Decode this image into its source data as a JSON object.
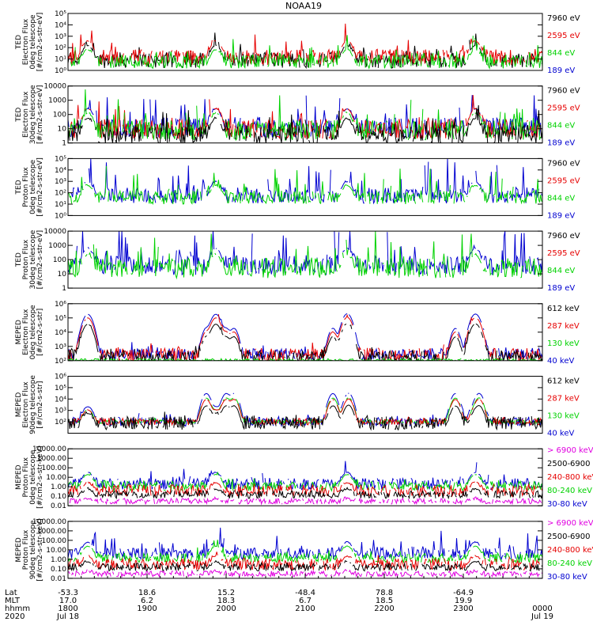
{
  "chart_data": {
    "type": "line",
    "title": "NOAA19",
    "x_range_hours": [
      18.0,
      24.0
    ],
    "panels": [
      {
        "id": "ted-e-0",
        "ylabel": [
          "TED",
          "Electron Flux",
          "0deg telescope",
          "[#/cm2-s-str-eV]"
        ],
        "ylim": [
          1,
          100000
        ],
        "scale": "log",
        "yticks": [
          {
            "v": 1,
            "label": "10⁰"
          },
          {
            "v": 10,
            "label": "10¹"
          },
          {
            "v": 100,
            "label": "10²"
          },
          {
            "v": 1000,
            "label": "10³"
          },
          {
            "v": 10000,
            "label": "10⁴"
          },
          {
            "v": 100000,
            "label": "10⁵"
          }
        ],
        "legend": [
          {
            "label": "7960 eV",
            "color": "#000000"
          },
          {
            "label": "2595 eV",
            "color": "#e60000"
          },
          {
            "label": "844 eV",
            "color": "#00d200"
          },
          {
            "label": "189 eV",
            "color": "#0000d0"
          }
        ],
        "series": [
          {
            "name": "7960 eV",
            "color": "#000000",
            "base": 8,
            "noise": 0.35,
            "pass_amp": 18,
            "aur_amp": 0.6,
            "trap_amp": 0
          },
          {
            "name": "2595 eV",
            "color": "#e60000",
            "base": 15,
            "noise": 0.35,
            "pass_amp": 25,
            "aur_amp": 0.8,
            "trap_amp": 0
          },
          {
            "name": "844 eV",
            "color": "#00d200",
            "base": 6,
            "noise": 0.3,
            "pass_amp": 10,
            "aur_amp": 0.7,
            "trap_amp": 0
          }
        ]
      },
      {
        "id": "ted-e-30",
        "ylabel": [
          "TED",
          "Electron Flux",
          "30deg telescope",
          "[#/cm2-s-str-eV]"
        ],
        "ylim": [
          1,
          10000
        ],
        "scale": "log",
        "yticks": [
          {
            "v": 1,
            "label": "1"
          },
          {
            "v": 10,
            "label": "10"
          },
          {
            "v": 100,
            "label": "100"
          },
          {
            "v": 1000,
            "label": "1000"
          },
          {
            "v": 10000,
            "label": "10000"
          }
        ],
        "legend": [
          {
            "label": "7960 eV",
            "color": "#000000"
          },
          {
            "label": "2595 eV",
            "color": "#e60000"
          },
          {
            "label": "844 eV",
            "color": "#00d200"
          },
          {
            "label": "189 eV",
            "color": "#0000d0"
          }
        ],
        "series": [
          {
            "name": "189 eV",
            "color": "#0000d0",
            "base": 12,
            "noise": 0.35,
            "pass_amp": 20,
            "aur_amp": 0.9,
            "trap_amp": 0
          },
          {
            "name": "2595 eV",
            "color": "#e60000",
            "base": 10,
            "noise": 0.35,
            "pass_amp": 25,
            "aur_amp": 0.8,
            "trap_amp": 0
          },
          {
            "name": "844 eV",
            "color": "#00d200",
            "base": 8,
            "noise": 0.35,
            "pass_amp": 15,
            "aur_amp": 0.9,
            "trap_amp": 0
          },
          {
            "name": "7960 eV",
            "color": "#000000",
            "base": 4,
            "noise": 0.35,
            "pass_amp": 12,
            "aur_amp": 0.6,
            "trap_amp": 0
          }
        ]
      },
      {
        "id": "ted-p-0",
        "ylabel": [
          "TED",
          "Proton Flux",
          "0deg telescope",
          "[#/cm2-s-str-eV]"
        ],
        "ylim": [
          1,
          100000
        ],
        "scale": "log",
        "yticks": [
          {
            "v": 1,
            "label": "10⁰"
          },
          {
            "v": 10,
            "label": "10¹"
          },
          {
            "v": 100,
            "label": "10²"
          },
          {
            "v": 1000,
            "label": "10³"
          },
          {
            "v": 10000,
            "label": "10⁴"
          },
          {
            "v": 100000,
            "label": "10⁵"
          }
        ],
        "legend": [
          {
            "label": "7960 eV",
            "color": "#000000"
          },
          {
            "label": "2595 eV",
            "color": "#e60000"
          },
          {
            "label": "844 eV",
            "color": "#00d200"
          },
          {
            "label": "189 eV",
            "color": "#0000d0"
          }
        ],
        "series": [
          {
            "name": "189 eV",
            "color": "#0000d0",
            "base": 60,
            "noise": 0.35,
            "pass_amp": 15,
            "aur_amp": 1.5,
            "trap_amp": 0
          },
          {
            "name": "844 eV",
            "color": "#00d200",
            "base": 40,
            "noise": 0.3,
            "pass_amp": 10,
            "aur_amp": 1.1,
            "trap_amp": 0
          }
        ]
      },
      {
        "id": "ted-p-30",
        "ylabel": [
          "TED",
          "Proton Flux",
          "30deg telescope",
          "[#/cm2-s-str-eV]"
        ],
        "ylim": [
          1,
          10000
        ],
        "scale": "log",
        "yticks": [
          {
            "v": 1,
            "label": "1"
          },
          {
            "v": 10,
            "label": "10"
          },
          {
            "v": 100,
            "label": "100"
          },
          {
            "v": 1000,
            "label": "1000"
          },
          {
            "v": 10000,
            "label": "10000"
          }
        ],
        "legend": [
          {
            "label": "7960 eV",
            "color": "#000000"
          },
          {
            "label": "2595 eV",
            "color": "#e60000"
          },
          {
            "label": "844 eV",
            "color": "#00d200"
          },
          {
            "label": "189 eV",
            "color": "#0000d0"
          }
        ],
        "series": [
          {
            "name": "189 eV",
            "color": "#0000d0",
            "base": 40,
            "noise": 0.35,
            "pass_amp": 15,
            "aur_amp": 1.4,
            "trap_amp": 0
          },
          {
            "name": "844 eV",
            "color": "#00d200",
            "base": 25,
            "noise": 0.35,
            "pass_amp": 8,
            "aur_amp": 1.1,
            "trap_amp": 0
          }
        ]
      },
      {
        "id": "meped-e-0",
        "ylabel": [
          "MEPED",
          "Electron Flux",
          "0deg telescope",
          "[#/cm2-s-str]"
        ],
        "ylim": [
          100,
          1000000
        ],
        "scale": "log",
        "yticks": [
          {
            "v": 100,
            "label": "10²"
          },
          {
            "v": 1000,
            "label": "10³"
          },
          {
            "v": 10000,
            "label": "10⁴"
          },
          {
            "v": 100000,
            "label": "10⁵"
          },
          {
            "v": 1000000,
            "label": "10⁶"
          }
        ],
        "legend": [
          {
            "label": "612 keV",
            "color": "#000000"
          },
          {
            "label": "287 keV",
            "color": "#e60000"
          },
          {
            "label": "130 keV",
            "color": "#00d200"
          },
          {
            "label": "40 keV",
            "color": "#0000d0"
          }
        ],
        "series": [
          {
            "name": "40 keV",
            "color": "#0000d0",
            "base": 300,
            "noise": 0.2,
            "pass_amp": 600,
            "aur_amp": 0.3,
            "trap_amp": 600
          },
          {
            "name": "287 keV",
            "color": "#e60000",
            "base": 250,
            "noise": 0.25,
            "pass_amp": 400,
            "aur_amp": 0.2,
            "trap_amp": 400
          },
          {
            "name": "612 keV",
            "color": "#000000",
            "base": 180,
            "noise": 0.25,
            "pass_amp": 200,
            "aur_amp": 0.2,
            "trap_amp": 250
          },
          {
            "name": "130 keV",
            "color": "#00d200",
            "base": 110,
            "noise": 0.05,
            "pass_amp": 0,
            "aur_amp": 0,
            "trap_amp": 0
          }
        ]
      },
      {
        "id": "meped-e-90",
        "ylabel": [
          "MEPED",
          "Electron Flux",
          "90deg telescope",
          "[#/cm2-s-str]"
        ],
        "ylim": [
          10,
          1000000
        ],
        "scale": "log",
        "yticks": [
          {
            "v": 100,
            "label": "10²"
          },
          {
            "v": 1000,
            "label": "10³"
          },
          {
            "v": 10000,
            "label": "10⁴"
          },
          {
            "v": 100000,
            "label": "10⁵"
          },
          {
            "v": 1000000,
            "label": "10⁶"
          }
        ],
        "legend": [
          {
            "label": "612 keV",
            "color": "#000000"
          },
          {
            "label": "287 keV",
            "color": "#e60000"
          },
          {
            "label": "130 keV",
            "color": "#00d200"
          },
          {
            "label": "40 keV",
            "color": "#0000d0"
          }
        ],
        "series": [
          {
            "name": "40 keV",
            "color": "#0000d0",
            "base": 100,
            "noise": 0.2,
            "pass_amp": 20,
            "aur_amp": 0.2,
            "trap_amp": 3000
          },
          {
            "name": "130 keV",
            "color": "#00d200",
            "base": 100,
            "noise": 0.1,
            "pass_amp": 10,
            "aur_amp": 0.1,
            "trap_amp": 1200
          },
          {
            "name": "287 keV",
            "color": "#e60000",
            "base": 100,
            "noise": 0.15,
            "pass_amp": 10,
            "aur_amp": 0.1,
            "trap_amp": 900
          },
          {
            "name": "612 keV",
            "color": "#000000",
            "base": 80,
            "noise": 0.3,
            "pass_amp": 6,
            "aur_amp": 0.3,
            "trap_amp": 300
          }
        ]
      },
      {
        "id": "meped-p-0",
        "ylabel": [
          "MEPED",
          "Proton Flux",
          "0deg telescope",
          "[#/cm2-s-str-keV]"
        ],
        "ylim": [
          0.01,
          10000
        ],
        "scale": "log",
        "yticks": [
          {
            "v": 0.01,
            "label": "0.01"
          },
          {
            "v": 0.1,
            "label": "0.10"
          },
          {
            "v": 1,
            "label": "1.00"
          },
          {
            "v": 10,
            "label": "10.00"
          },
          {
            "v": 100,
            "label": "100.00"
          },
          {
            "v": 1000,
            "label": "1000.00"
          },
          {
            "v": 10000,
            "label": "10000.00"
          }
        ],
        "legend": [
          {
            "label": "> 6900 keV",
            "color": "#e000e0"
          },
          {
            "label": "2500-6900",
            "color": "#000000"
          },
          {
            "label": "240-800 keV",
            "color": "#e60000"
          },
          {
            "label": "80-240 keV",
            "color": "#00d200"
          },
          {
            "label": "30-80 keV",
            "color": "#0000d0"
          }
        ],
        "series": [
          {
            "name": "30-80 keV",
            "color": "#0000d0",
            "base": 2,
            "noise": 0.3,
            "pass_amp": 15,
            "aur_amp": 0.6,
            "trap_amp": 0
          },
          {
            "name": "80-240 keV",
            "color": "#00d200",
            "base": 1.2,
            "noise": 0.25,
            "pass_amp": 15,
            "aur_amp": 0.2,
            "trap_amp": 0
          },
          {
            "name": "240-800 keV",
            "color": "#e60000",
            "base": 0.4,
            "noise": 0.3,
            "pass_amp": 6,
            "aur_amp": 0.1,
            "trap_amp": 0
          },
          {
            "name": "2500-6900",
            "color": "#000000",
            "base": 0.15,
            "noise": 0.2,
            "pass_amp": 3,
            "aur_amp": 0.05,
            "trap_amp": 0
          },
          {
            "name": "> 6900 keV",
            "color": "#e000e0",
            "base": 0.03,
            "noise": 0.15,
            "pass_amp": 1,
            "aur_amp": 0,
            "trap_amp": 0
          }
        ]
      },
      {
        "id": "meped-p-90",
        "ylabel": [
          "MEPED",
          "Proton Flux",
          "90deg telescope",
          "[#/cm2-s-str-keV]"
        ],
        "ylim": [
          0.01,
          10000
        ],
        "scale": "log",
        "yticks": [
          {
            "v": 0.01,
            "label": "0.01"
          },
          {
            "v": 0.1,
            "label": "0.10"
          },
          {
            "v": 1,
            "label": "1.00"
          },
          {
            "v": 10,
            "label": "10.00"
          },
          {
            "v": 100,
            "label": "100.00"
          },
          {
            "v": 1000,
            "label": "1000.00"
          },
          {
            "v": 10000,
            "label": "10000.00"
          }
        ],
        "legend": [
          {
            "label": "> 6900 keV",
            "color": "#e000e0"
          },
          {
            "label": "2500-6900",
            "color": "#000000"
          },
          {
            "label": "240-800 keV",
            "color": "#e60000"
          },
          {
            "label": "80-240 keV",
            "color": "#00d200"
          },
          {
            "label": "30-80 keV",
            "color": "#0000d0"
          }
        ],
        "series": [
          {
            "name": "30-80 keV",
            "color": "#0000d0",
            "base": 4,
            "noise": 0.3,
            "pass_amp": 15,
            "aur_amp": 1.0,
            "trap_amp": 0
          },
          {
            "name": "80-240 keV",
            "color": "#00d200",
            "base": 1.5,
            "noise": 0.25,
            "pass_amp": 15,
            "aur_amp": 0.4,
            "trap_amp": 0
          },
          {
            "name": "240-800 keV",
            "color": "#e60000",
            "base": 0.3,
            "noise": 0.3,
            "pass_amp": 6,
            "aur_amp": 0.2,
            "trap_amp": 0
          },
          {
            "name": "2500-6900",
            "color": "#000000",
            "base": 0.15,
            "noise": 0.2,
            "pass_amp": 3,
            "aur_amp": 0.05,
            "trap_amp": 0
          },
          {
            "name": "> 6900 keV",
            "color": "#e000e0",
            "base": 0.03,
            "noise": 0.15,
            "pass_amp": 1,
            "aur_amp": 0,
            "trap_amp": 0
          }
        ]
      }
    ],
    "saa_passes_hours": [
      18.25,
      19.87,
      21.53,
      23.15
    ],
    "trapped_belt_hours": [
      19.75,
      20.0,
      20.1,
      21.35,
      21.55,
      22.9,
      23.2
    ],
    "x_axis": {
      "row_labels": [
        "Lat",
        "MLT",
        "hhmm",
        "2020"
      ],
      "ticks": [
        {
          "hour": 18.0,
          "lat": "-53.3",
          "mlt": "17.0",
          "hhmm": "1800",
          "date": "Jul 18"
        },
        {
          "hour": 19.0,
          "lat": "18.6",
          "mlt": "6.2",
          "hhmm": "1900",
          "date": ""
        },
        {
          "hour": 20.0,
          "lat": "15.2",
          "mlt": "18.3",
          "hhmm": "2000",
          "date": ""
        },
        {
          "hour": 21.0,
          "lat": "-48.4",
          "mlt": "6.7",
          "hhmm": "2100",
          "date": ""
        },
        {
          "hour": 22.0,
          "lat": "78.8",
          "mlt": "18.5",
          "hhmm": "2200",
          "date": ""
        },
        {
          "hour": 23.0,
          "lat": "-64.9",
          "mlt": "19.9",
          "hhmm": "2300",
          "date": ""
        },
        {
          "hour": 24.0,
          "lat": "",
          "mlt": "",
          "hhmm": "0000",
          "date": "Jul 19"
        }
      ]
    }
  }
}
